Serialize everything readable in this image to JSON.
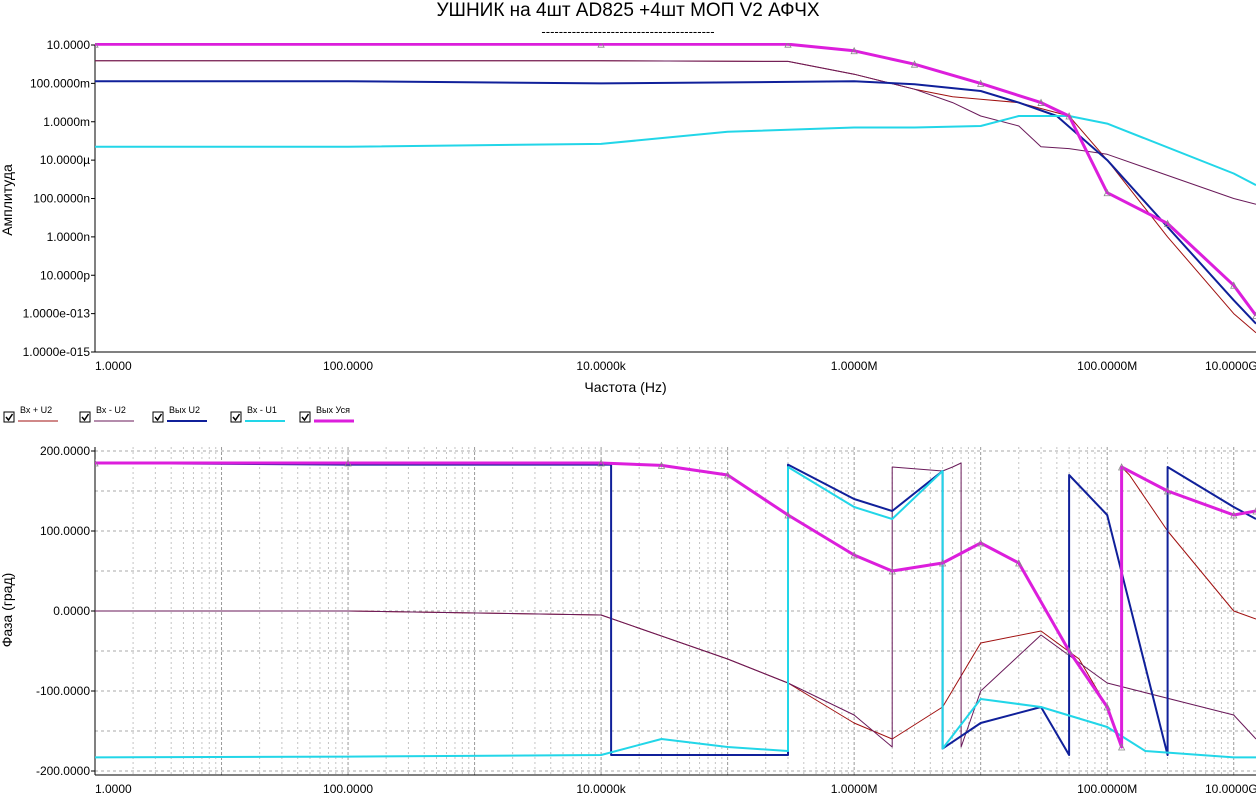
{
  "title": "УШНИК на 4шт AD825 +4шт МОП V2 АФЧХ",
  "subtitle": "----------------------------------------",
  "colors": {
    "inp_plus_u2": "#a01010",
    "inp_minus_u2": "#6a1a5a",
    "out_u2": "#10209a",
    "inp_minus_u1": "#22d6e8",
    "out_amp": "#dc1edc"
  },
  "legend": [
    {
      "label": "Вх + U2",
      "color_key": "inp_plus_u2",
      "checked": true
    },
    {
      "label": "Вх - U2",
      "color_key": "inp_minus_u2",
      "checked": true
    },
    {
      "label": "Вых U2",
      "color_key": "out_u2",
      "checked": true
    },
    {
      "label": "Вх - U1",
      "color_key": "inp_minus_u1",
      "checked": true
    },
    {
      "label": "Вых Уся",
      "color_key": "out_amp",
      "checked": true
    }
  ],
  "chart_data": [
    {
      "type": "line",
      "ylabel": "Амплитуда",
      "xlabel": "Частота (Hz)",
      "xscale": "log",
      "yscale": "log",
      "grid": false,
      "xlim": [
        1,
        1500000000
      ],
      "ylim": [
        1e-15,
        10
      ],
      "x_tick_values": [
        1,
        100,
        10000,
        1000000,
        100000000,
        10000000000
      ],
      "x_tick_labels": [
        "1.0000",
        "100.0000",
        "10.0000k",
        "1.0000M",
        "100.0000M",
        "10.0000G"
      ],
      "y_tick_values": [
        10,
        0.1,
        0.001,
        1e-05,
        1e-07,
        1e-09,
        1e-11,
        1e-13,
        1e-15
      ],
      "y_tick_labels": [
        "10.0000",
        "100.0000m",
        "1.0000m",
        "10.0000µ",
        "100.0000n",
        "1.0000n",
        "10.0000p",
        "1.0000e-013",
        "1.0000e-015"
      ],
      "series": [
        {
          "name": "Вх + U2",
          "color_key": "inp_plus_u2",
          "x": [
            1,
            10000,
            300000,
            1000000,
            3000000,
            6000000,
            10000000,
            20000000,
            50000000,
            100000000,
            300000000,
            1000000000,
            1500000000
          ],
          "y": [
            1.5,
            1.5,
            1.4,
            0.3,
            0.05,
            0.02,
            0.015,
            0.01,
            0.002,
            1e-05,
            1e-09,
            1e-13,
            1e-14
          ]
        },
        {
          "name": "Вх - U2",
          "color_key": "inp_minus_u2",
          "x": [
            1,
            10000,
            300000,
            1000000,
            3000000,
            6000000,
            10000000,
            20000000,
            30000000,
            50000000,
            100000000,
            1000000000,
            1500000000
          ],
          "y": [
            1.5,
            1.5,
            1.4,
            0.3,
            0.05,
            0.01,
            0.002,
            0.0006,
            5e-05,
            4e-05,
            2e-05,
            1e-07,
            5e-08
          ]
        },
        {
          "name": "Вых U2",
          "color_key": "out_u2",
          "x": [
            1,
            100,
            10000,
            300000,
            1000000,
            3000000,
            10000000,
            20000000,
            40000000,
            100000000,
            1000000000,
            1500000000
          ],
          "y": [
            0.13,
            0.13,
            0.1,
            0.12,
            0.13,
            0.09,
            0.04,
            0.01,
            0.002,
            1e-05,
            5e-13,
            3e-14
          ]
        },
        {
          "name": "Вх - U1",
          "color_key": "inp_minus_u1",
          "x": [
            1,
            100,
            10000,
            100000,
            1000000,
            3000000,
            10000000,
            20000000,
            50000000,
            100000000,
            1000000000,
            1500000000
          ],
          "y": [
            5e-05,
            5e-05,
            7e-05,
            0.0003,
            0.0005,
            0.0005,
            0.0006,
            0.002,
            0.002,
            0.0008,
            2e-06,
            5e-07
          ]
        },
        {
          "name": "Вых Уся",
          "color_key": "out_amp",
          "x": [
            1,
            10000,
            300000,
            1000000,
            3000000,
            10000000,
            30000000,
            50000000,
            100000000,
            300000000,
            1000000000,
            1500000000
          ],
          "y": [
            11,
            11,
            11,
            5,
            1,
            0.1,
            0.01,
            0.002,
            2e-07,
            5e-09,
            3e-12,
            8e-14
          ]
        }
      ]
    },
    {
      "type": "line",
      "ylabel": "Фаза (град)",
      "xscale": "log",
      "grid": true,
      "xlim": [
        1,
        1500000000
      ],
      "ylim": [
        -205,
        205
      ],
      "x_tick_values": [
        1,
        100,
        10000,
        1000000,
        100000000,
        10000000000
      ],
      "x_tick_labels": [
        "1.0000",
        "100.0000",
        "10.0000k",
        "1.0000M",
        "100.0000M",
        "10.0000G"
      ],
      "y_tick_values": [
        200,
        100,
        0,
        -100,
        -200
      ],
      "y_tick_labels": [
        "200.0000",
        "100.0000",
        "0.0000",
        "-100.0000",
        "-200.0000"
      ],
      "series": [
        {
          "name": "Вх + U2",
          "color_key": "inp_plus_u2",
          "x": [
            1,
            100,
            10000,
            100000,
            300000,
            1000000,
            2000000,
            5000000,
            10000000,
            30000000,
            60000000,
            100000000,
            130000000,
            130000001,
            150000000,
            300000000,
            1000000000,
            1500000000
          ],
          "y": [
            0,
            0,
            -5,
            -60,
            -90,
            -140,
            -160,
            -120,
            -40,
            -25,
            -60,
            -120,
            -170,
            180,
            170,
            100,
            0,
            -10
          ]
        },
        {
          "name": "Вх - U2",
          "color_key": "inp_minus_u2",
          "x": [
            1,
            100,
            10000,
            100000,
            300000,
            1000000,
            2000000,
            2000001,
            5000000,
            6000000,
            7000000,
            7000001,
            10000000,
            30000000,
            100000000,
            1000000000,
            1500000000
          ],
          "y": [
            0,
            0,
            -5,
            -60,
            -90,
            -130,
            -170,
            180,
            175,
            180,
            185,
            -170,
            -100,
            -30,
            -90,
            -130,
            -160
          ]
        },
        {
          "name": "Вых U2",
          "color_key": "out_u2",
          "x": [
            1,
            100,
            10000,
            12000,
            12001,
            30000,
            100000,
            300000,
            300001,
            1000000,
            2000000,
            5000000,
            5000001,
            10000000,
            30000000,
            50000000,
            50000001,
            100000000,
            300000000,
            300000001,
            1000000000,
            1500000000
          ],
          "y": [
            185,
            183,
            183,
            183,
            -180,
            -180,
            -180,
            -180,
            183,
            140,
            125,
            175,
            -172,
            -140,
            -120,
            -180,
            170,
            120,
            -180,
            180,
            130,
            115
          ]
        },
        {
          "name": "Вх - U1",
          "color_key": "inp_minus_u1",
          "x": [
            1,
            100,
            10000,
            30000,
            100000,
            300000,
            300001,
            1000000,
            2000000,
            5000000,
            5000001,
            10000000,
            30000000,
            100000000,
            200000000,
            1000000000,
            1500000000
          ],
          "y": [
            -183,
            -182,
            -180,
            -160,
            -170,
            -175,
            180,
            130,
            115,
            175,
            -172,
            -110,
            -120,
            -145,
            -175,
            -183,
            -183
          ]
        },
        {
          "name": "Вых Уся",
          "color_key": "out_amp",
          "x": [
            1,
            100,
            10000,
            30000,
            100000,
            300000,
            1000000,
            2000000,
            5000000,
            10000000,
            20000000,
            50000000,
            100000000,
            130000000,
            130000001,
            300000000,
            1000000000,
            1500000000
          ],
          "y": [
            185,
            185,
            185,
            182,
            170,
            120,
            70,
            50,
            60,
            85,
            60,
            -50,
            -120,
            -170,
            180,
            150,
            120,
            125
          ]
        }
      ]
    }
  ]
}
